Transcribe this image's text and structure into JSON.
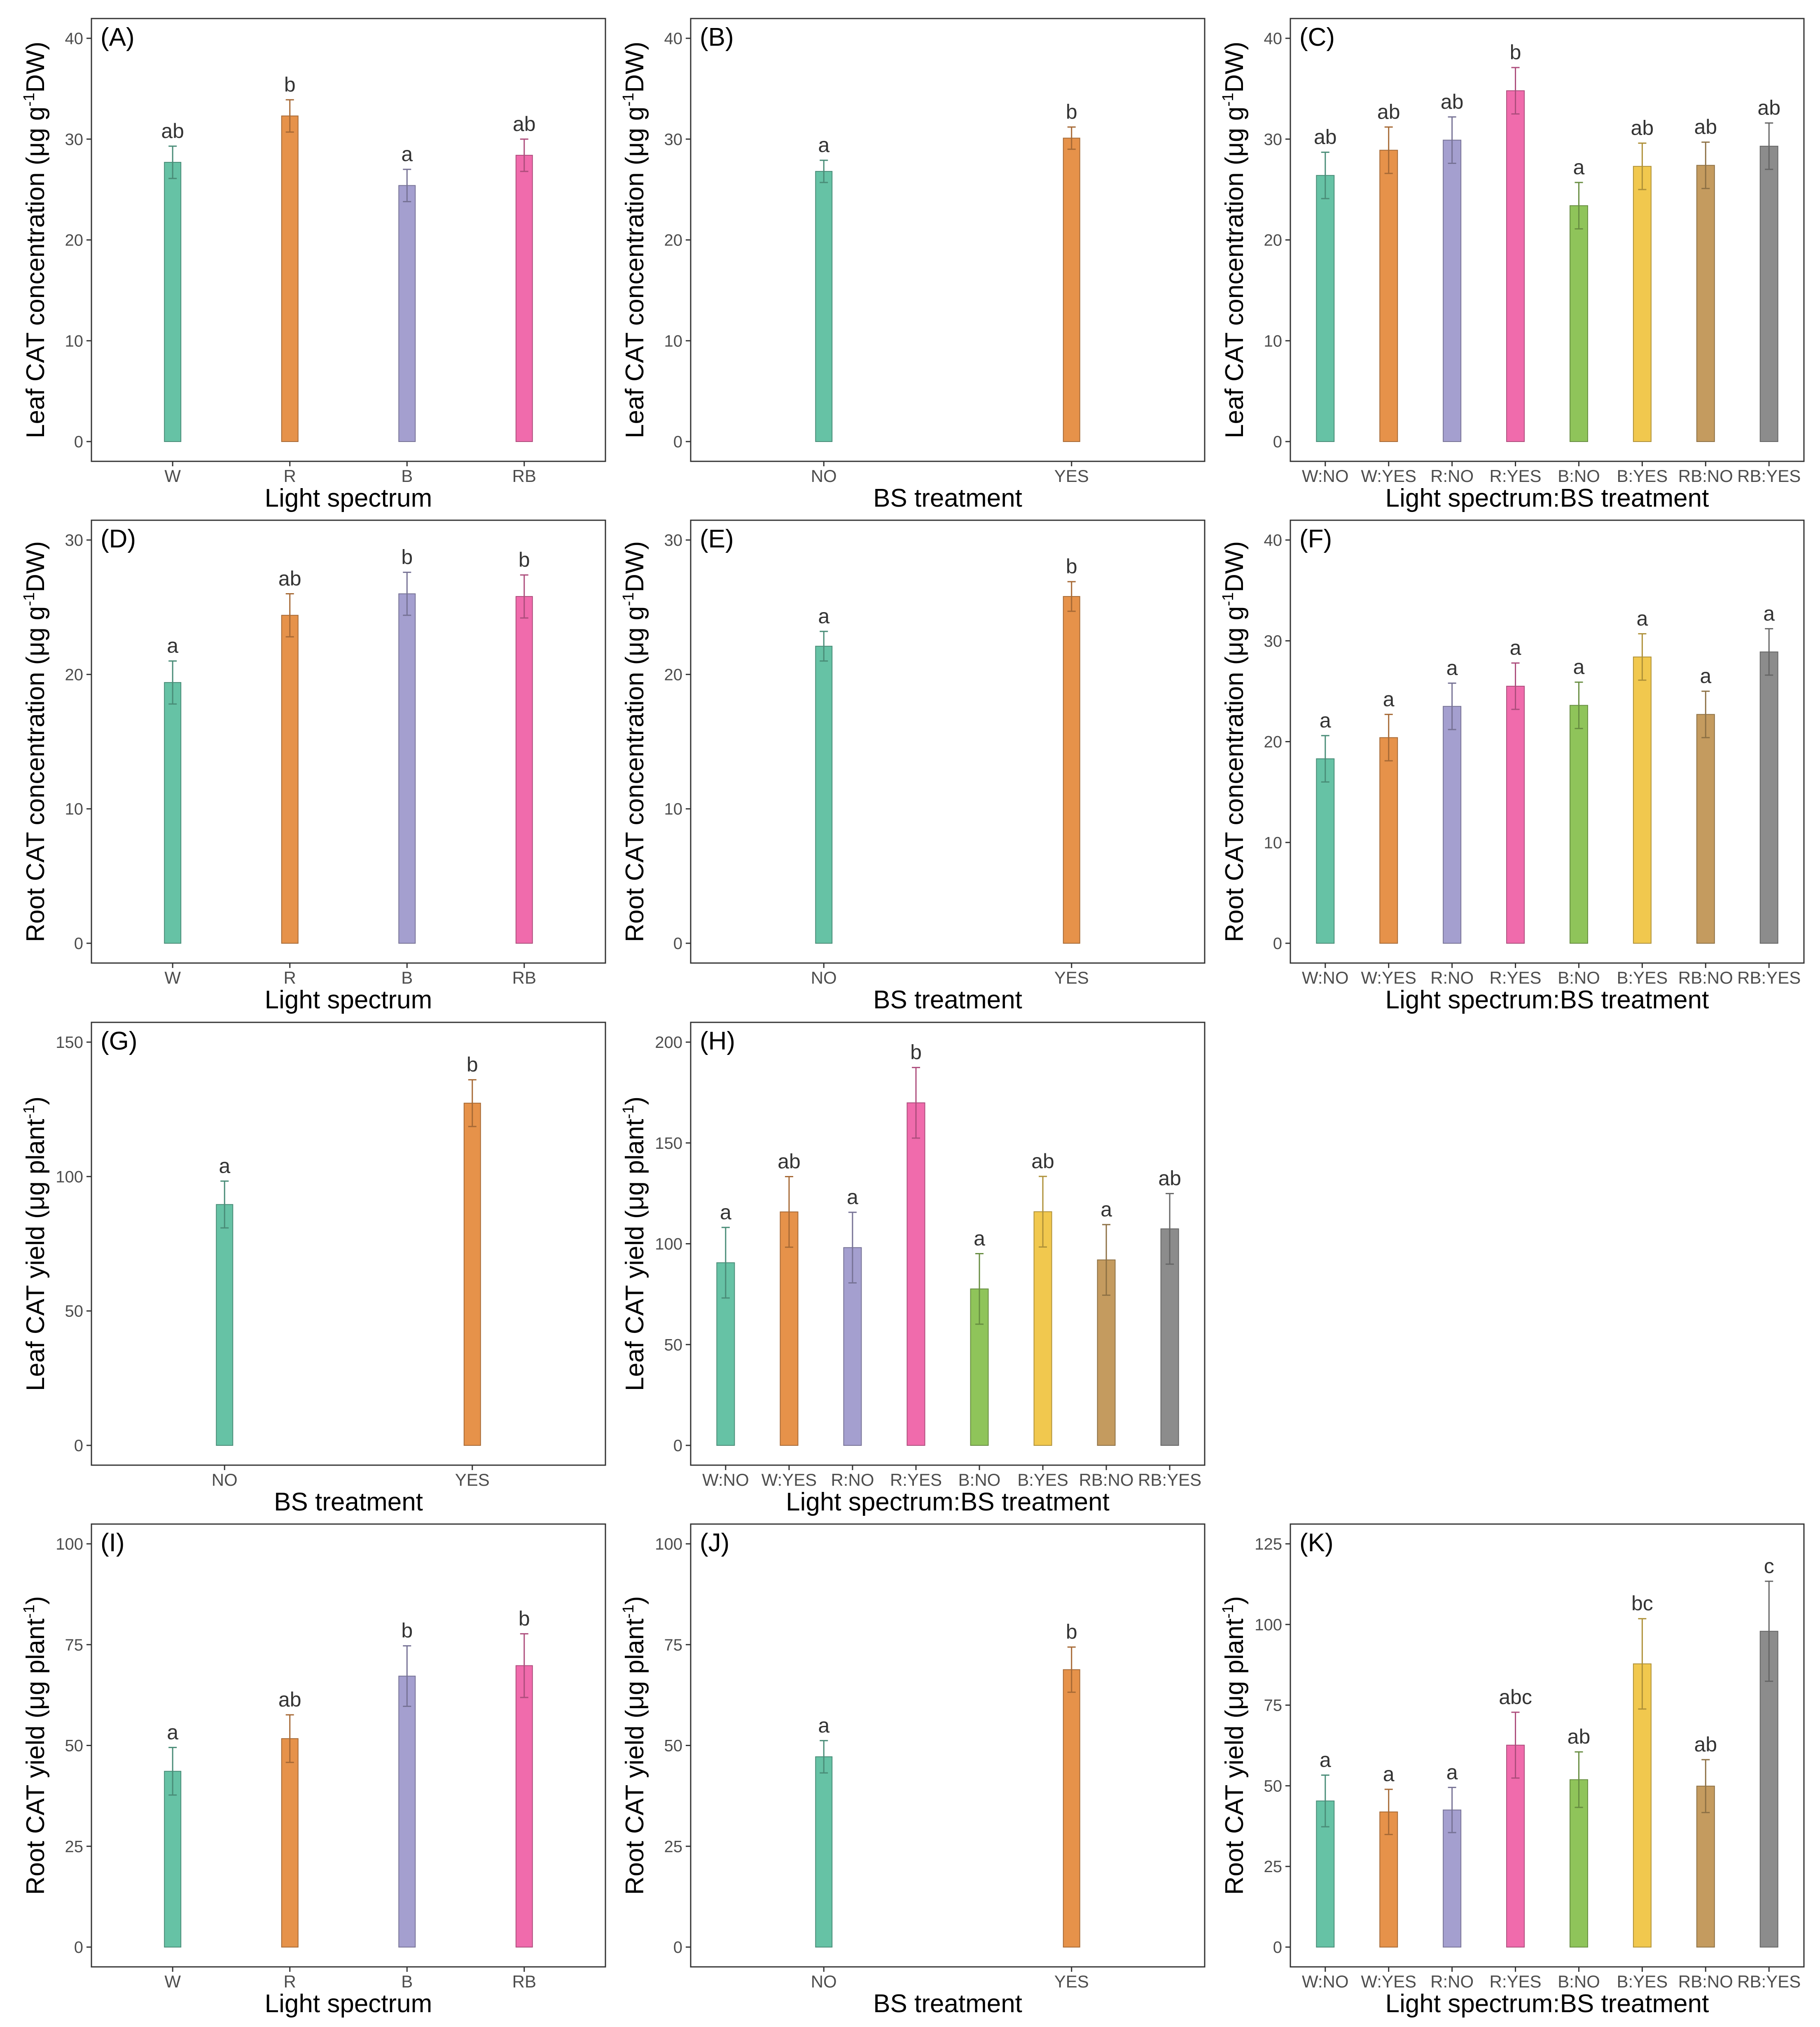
{
  "chart_data": [
    {
      "panel": "(A)",
      "type": "bar",
      "ylabel": "Leaf CAT concentration (μg g⁻¹DW)",
      "ylabel_parts": [
        "Leaf CAT concentration (μg g",
        "-1",
        "DW)"
      ],
      "xlabel": "Light spectrum",
      "categories": [
        "W",
        "R",
        "B",
        "RB"
      ],
      "values": [
        27.7,
        32.3,
        25.4,
        28.4
      ],
      "errors": [
        1.6,
        1.6,
        1.6,
        1.6
      ],
      "letters": [
        "ab",
        "b",
        "a",
        "ab"
      ],
      "colors": [
        "#66c2a5",
        "#e6924a",
        "#a49fcf",
        "#f06bac"
      ],
      "ylim": [
        0,
        40
      ],
      "yticks": [
        0,
        10,
        20,
        30,
        40
      ]
    },
    {
      "panel": "(B)",
      "type": "bar",
      "ylabel": "Leaf CAT concentration (μg g⁻¹DW)",
      "ylabel_parts": [
        "Leaf CAT concentration (μg g",
        "-1",
        "DW)"
      ],
      "xlabel": "BS treatment",
      "categories": [
        "NO",
        "YES"
      ],
      "values": [
        26.8,
        30.1
      ],
      "errors": [
        1.1,
        1.1
      ],
      "letters": [
        "a",
        "b"
      ],
      "colors": [
        "#66c2a5",
        "#e6924a"
      ],
      "ylim": [
        0,
        40
      ],
      "yticks": [
        0,
        10,
        20,
        30,
        40
      ]
    },
    {
      "panel": "(C)",
      "type": "bar",
      "ylabel": "Leaf CAT concentration (μg g⁻¹DW)",
      "ylabel_parts": [
        "Leaf CAT concentration (μg g",
        "-1",
        "DW)"
      ],
      "xlabel": "Light spectrum:BS treatment",
      "categories": [
        "W:NO",
        "W:YES",
        "R:NO",
        "R:YES",
        "B:NO",
        "B:YES",
        "RB:NO",
        "RB:YES"
      ],
      "values": [
        26.4,
        28.9,
        29.9,
        34.8,
        23.4,
        27.3,
        27.4,
        29.3
      ],
      "errors": [
        2.3,
        2.3,
        2.3,
        2.3,
        2.3,
        2.3,
        2.3,
        2.3
      ],
      "letters": [
        "ab",
        "ab",
        "ab",
        "b",
        "a",
        "ab",
        "ab",
        "ab"
      ],
      "colors": [
        "#66c2a5",
        "#e6924a",
        "#a49fcf",
        "#f06bac",
        "#8fc45a",
        "#f1c84e",
        "#c49b5f",
        "#8c8c8c"
      ],
      "ylim": [
        0,
        40
      ],
      "yticks": [
        0,
        10,
        20,
        30,
        40
      ]
    },
    {
      "panel": "(D)",
      "type": "bar",
      "ylabel": "Root CAT concentration (μg g⁻¹DW)",
      "ylabel_parts": [
        "Root CAT concentration (μg g",
        "-1",
        "DW)"
      ],
      "xlabel": "Light spectrum",
      "categories": [
        "W",
        "R",
        "B",
        "RB"
      ],
      "values": [
        19.4,
        24.4,
        26.0,
        25.8
      ],
      "errors": [
        1.6,
        1.6,
        1.6,
        1.6
      ],
      "letters": [
        "a",
        "ab",
        "b",
        "b"
      ],
      "colors": [
        "#66c2a5",
        "#e6924a",
        "#a49fcf",
        "#f06bac"
      ],
      "ylim": [
        0,
        30
      ],
      "yticks": [
        0,
        10,
        20,
        30
      ]
    },
    {
      "panel": "(E)",
      "type": "bar",
      "ylabel": "Root CAT concentration (μg g⁻¹DW)",
      "ylabel_parts": [
        "Root CAT concentration (μg g",
        "-1",
        "DW)"
      ],
      "xlabel": "BS treatment",
      "categories": [
        "NO",
        "YES"
      ],
      "values": [
        22.1,
        25.8
      ],
      "errors": [
        1.1,
        1.1
      ],
      "letters": [
        "a",
        "b"
      ],
      "colors": [
        "#66c2a5",
        "#e6924a"
      ],
      "ylim": [
        0,
        30
      ],
      "yticks": [
        0,
        10,
        20,
        30
      ]
    },
    {
      "panel": "(F)",
      "type": "bar",
      "ylabel": "Root CAT concentration (μg g⁻¹DW)",
      "ylabel_parts": [
        "Root CAT concentration (μg g",
        "-1",
        "DW)"
      ],
      "xlabel": "Light spectrum:BS treatment",
      "categories": [
        "W:NO",
        "W:YES",
        "R:NO",
        "R:YES",
        "B:NO",
        "B:YES",
        "RB:NO",
        "RB:YES"
      ],
      "values": [
        18.3,
        20.4,
        23.5,
        25.5,
        23.6,
        28.4,
        22.7,
        28.9
      ],
      "errors": [
        2.3,
        2.3,
        2.3,
        2.3,
        2.3,
        2.3,
        2.3,
        2.3
      ],
      "letters": [
        "a",
        "a",
        "a",
        "a",
        "a",
        "a",
        "a",
        "a"
      ],
      "colors": [
        "#66c2a5",
        "#e6924a",
        "#a49fcf",
        "#f06bac",
        "#8fc45a",
        "#f1c84e",
        "#c49b5f",
        "#8c8c8c"
      ],
      "ylim": [
        0,
        40
      ],
      "yticks": [
        0,
        10,
        20,
        30,
        40
      ]
    },
    {
      "panel": "(G)",
      "type": "bar",
      "ylabel": "Leaf CAT yield (μg plant⁻¹)",
      "ylabel_parts": [
        "Leaf CAT yield (μg plant",
        "-1",
        ")"
      ],
      "xlabel": "BS treatment",
      "categories": [
        "NO",
        "YES"
      ],
      "values": [
        89.6,
        127.3
      ],
      "errors": [
        8.7,
        8.7
      ],
      "letters": [
        "a",
        "b"
      ],
      "colors": [
        "#66c2a5",
        "#e6924a"
      ],
      "ylim": [
        0,
        150
      ],
      "yticks": [
        0,
        50,
        100,
        150
      ]
    },
    {
      "panel": "(H)",
      "type": "bar",
      "ylabel": "Leaf CAT yield (μg plant⁻¹)",
      "ylabel_parts": [
        "Leaf CAT yield (μg plant",
        "-1",
        ")"
      ],
      "xlabel": "Light spectrum:BS treatment",
      "categories": [
        "W:NO",
        "W:YES",
        "R:NO",
        "R:YES",
        "B:NO",
        "B:YES",
        "RB:NO",
        "RB:YES"
      ],
      "values": [
        90.6,
        115.8,
        98.1,
        169.9,
        77.6,
        115.9,
        92.0,
        107.4
      ],
      "errors": [
        17.5,
        17.5,
        17.5,
        17.5,
        17.5,
        17.5,
        17.5,
        17.5
      ],
      "letters": [
        "a",
        "ab",
        "a",
        "b",
        "a",
        "ab",
        "a",
        "ab"
      ],
      "colors": [
        "#66c2a5",
        "#e6924a",
        "#a49fcf",
        "#f06bac",
        "#8fc45a",
        "#f1c84e",
        "#c49b5f",
        "#8c8c8c"
      ],
      "ylim": [
        0,
        200
      ],
      "yticks": [
        0,
        50,
        100,
        150,
        200
      ]
    },
    {
      "panel": "(I)",
      "type": "bar",
      "ylabel": "Root CAT yield (μg plant⁻¹)",
      "ylabel_parts": [
        "Root CAT yield (μg plant",
        "-1",
        ")"
      ],
      "xlabel": "Light spectrum",
      "categories": [
        "W",
        "R",
        "B",
        "RB"
      ],
      "values": [
        43.6,
        51.7,
        67.2,
        69.8
      ],
      "errors": [
        5.9,
        5.9,
        7.5,
        7.9
      ],
      "letters": [
        "a",
        "ab",
        "b",
        "b"
      ],
      "colors": [
        "#66c2a5",
        "#e6924a",
        "#a49fcf",
        "#f06bac"
      ],
      "ylim": [
        0,
        100
      ],
      "yticks": [
        0,
        25,
        50,
        75,
        100
      ]
    },
    {
      "panel": "(J)",
      "type": "bar",
      "ylabel": "Root CAT yield (μg plant⁻¹)",
      "ylabel_parts": [
        "Root CAT yield (μg plant",
        "-1",
        ")"
      ],
      "xlabel": "BS treatment",
      "categories": [
        "NO",
        "YES"
      ],
      "values": [
        47.2,
        68.8
      ],
      "errors": [
        4.0,
        5.6
      ],
      "letters": [
        "a",
        "b"
      ],
      "colors": [
        "#66c2a5",
        "#e6924a"
      ],
      "ylim": [
        0,
        100
      ],
      "yticks": [
        0,
        25,
        50,
        75,
        100
      ]
    },
    {
      "panel": "(K)",
      "type": "bar",
      "ylabel": "Root CAT yield (μg plant⁻¹)",
      "ylabel_parts": [
        "Root CAT yield (μg plant",
        "-1",
        ")"
      ],
      "xlabel": "Light spectrum:BS treatment",
      "categories": [
        "W:NO",
        "W:YES",
        "R:NO",
        "R:YES",
        "B:NO",
        "B:YES",
        "RB:NO",
        "RB:YES"
      ],
      "values": [
        45.3,
        41.9,
        42.5,
        62.6,
        51.9,
        87.8,
        49.9,
        97.9
      ],
      "errors": [
        8.0,
        7.0,
        7.0,
        10.2,
        8.6,
        14.0,
        8.2,
        15.5
      ],
      "letters": [
        "a",
        "a",
        "a",
        "abc",
        "ab",
        "bc",
        "ab",
        "c"
      ],
      "colors": [
        "#66c2a5",
        "#e6924a",
        "#a49fcf",
        "#f06bac",
        "#8fc45a",
        "#f1c84e",
        "#c49b5f",
        "#8c8c8c"
      ],
      "ylim": [
        0,
        125
      ],
      "yticks": [
        0,
        25,
        50,
        75,
        100,
        125
      ]
    }
  ]
}
